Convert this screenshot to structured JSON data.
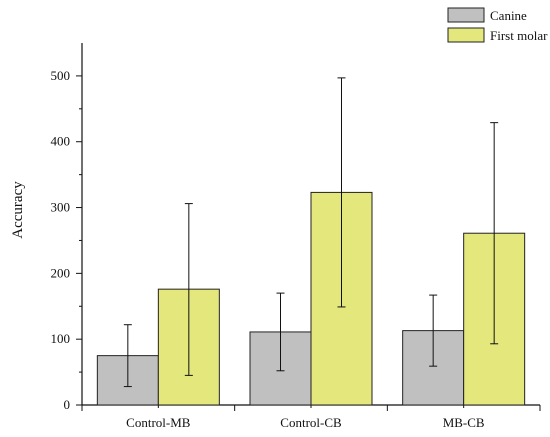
{
  "chart_data": {
    "type": "bar",
    "title": "",
    "xlabel": "",
    "ylabel": "Accuracy",
    "ylim": [
      0,
      550
    ],
    "yticks": [
      0,
      100,
      200,
      300,
      400,
      500
    ],
    "grid": false,
    "legend_position": "top-right",
    "categories": [
      "Control-MB",
      "Control-CB",
      "MB-CB"
    ],
    "series": [
      {
        "name": "Canine",
        "color": "#c0c0c0",
        "values": [
          75,
          111,
          113
        ],
        "error": [
          [
            28,
            122
          ],
          [
            52,
            170
          ],
          [
            59,
            167
          ]
        ]
      },
      {
        "name": "First molar",
        "color": "#e4e77c",
        "values": [
          176,
          323,
          261
        ],
        "error": [
          [
            45,
            306
          ],
          [
            149,
            497
          ],
          [
            93,
            429
          ]
        ]
      }
    ]
  }
}
